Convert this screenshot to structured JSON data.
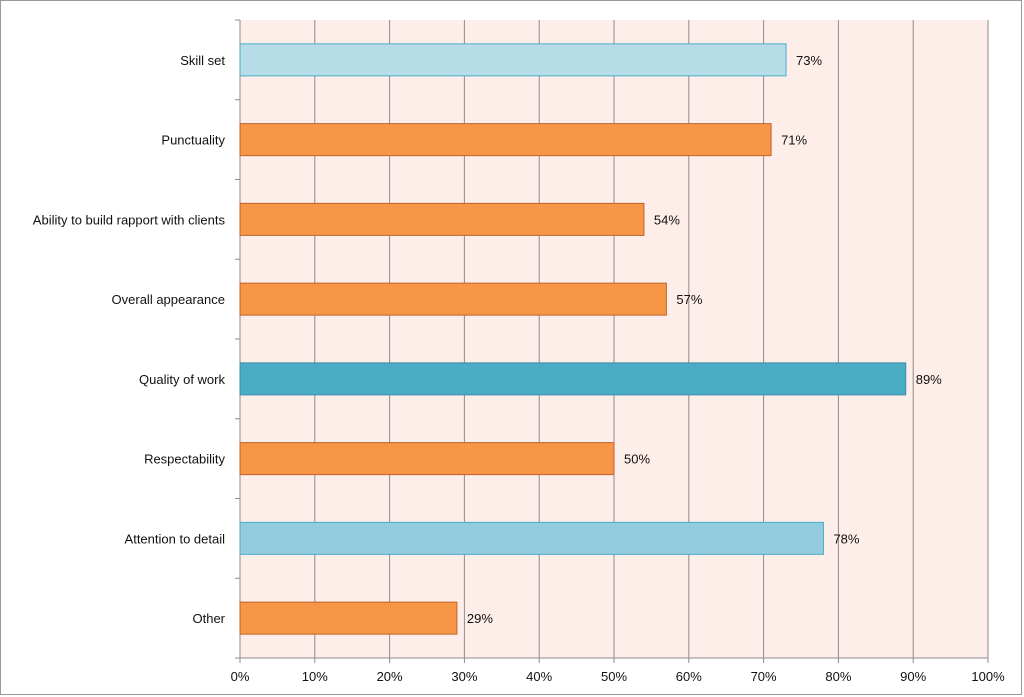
{
  "chart_data": {
    "type": "bar",
    "orientation": "horizontal",
    "categories": [
      "Skill set",
      "Punctuality",
      "Ability to build rapport with clients",
      "Overall appearance",
      "Quality of work",
      "Respectability",
      "Attention to detail",
      "Other"
    ],
    "values": [
      73,
      71,
      54,
      57,
      89,
      50,
      78,
      29
    ],
    "data_labels": [
      "73%",
      "71%",
      "54%",
      "57%",
      "89%",
      "50%",
      "78%",
      "29%"
    ],
    "bar_colors": [
      "#b7dde9",
      "#f79646",
      "#f79646",
      "#f79646",
      "#4bacc6",
      "#f79646",
      "#93cddd",
      "#f79646"
    ],
    "bar_borders": [
      "#4bacc6",
      "#c0622a",
      "#c0622a",
      "#c0622a",
      "#3a8ca4",
      "#c0622a",
      "#4bacc6",
      "#c0622a"
    ],
    "xlim": [
      0,
      100
    ],
    "x_ticks": [
      0,
      10,
      20,
      30,
      40,
      50,
      60,
      70,
      80,
      90,
      100
    ],
    "x_tick_labels": [
      "0%",
      "10%",
      "20%",
      "30%",
      "40%",
      "50%",
      "60%",
      "70%",
      "80%",
      "90%",
      "100%"
    ],
    "title": "",
    "xlabel": "",
    "ylabel": "",
    "grid": "vertical",
    "plot_background": "#fdeeea",
    "legend": "none"
  }
}
